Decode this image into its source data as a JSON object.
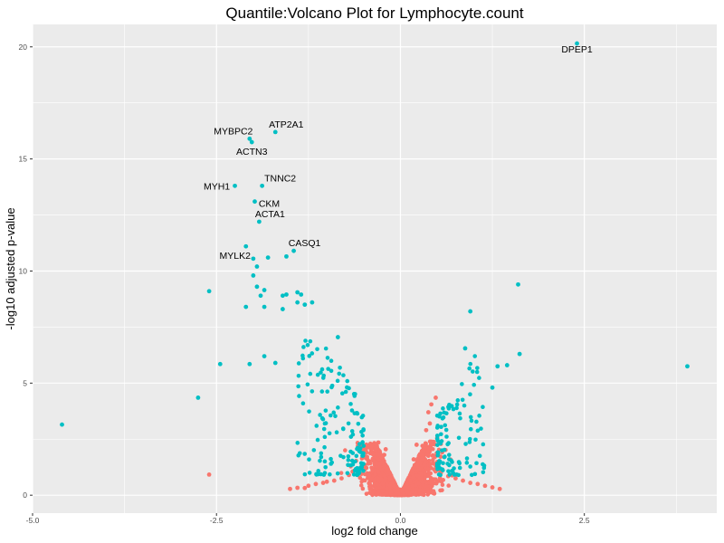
{
  "chart_data": {
    "type": "scatter",
    "title": "Quantile:Volcano Plot for Lymphocyte.count",
    "xlabel": "log2 fold change",
    "ylabel": "-log10 adjusted p-value",
    "xlim": [
      -5.0,
      4.3
    ],
    "ylim": [
      -0.8,
      21.0
    ],
    "x_ticks": [
      {
        "value": -5.0,
        "label": "-5.0"
      },
      {
        "value": -2.5,
        "label": "-2.5"
      },
      {
        "value": 0.0,
        "label": "0.0"
      },
      {
        "value": 2.5,
        "label": "2.5"
      }
    ],
    "y_ticks": [
      {
        "value": 0,
        "label": "0"
      },
      {
        "value": 5,
        "label": "5"
      },
      {
        "value": 10,
        "label": "10"
      },
      {
        "value": 15,
        "label": "15"
      },
      {
        "value": 20,
        "label": "20"
      }
    ],
    "grid": true,
    "legend": "none",
    "colors": {
      "not_significant": "#F8766D",
      "significant": "#00BFC4",
      "panel_background": "#EBEBEB",
      "grid": "#FFFFFF"
    },
    "series": [
      {
        "color": "#00BFC4",
        "points": [
          [
            2.4,
            20.15
          ],
          [
            -1.7,
            16.2
          ],
          [
            -2.05,
            15.9
          ],
          [
            -2.02,
            15.75
          ],
          [
            -1.88,
            13.8
          ],
          [
            -2.25,
            13.8
          ],
          [
            -1.98,
            13.1
          ],
          [
            -1.92,
            12.2
          ],
          [
            -1.45,
            10.9
          ],
          [
            -2.1,
            11.1
          ],
          [
            -1.55,
            10.65
          ],
          [
            -2.0,
            10.55
          ],
          [
            -1.8,
            10.6
          ],
          [
            -1.95,
            10.2
          ],
          [
            -2.6,
            9.1
          ],
          [
            1.6,
            9.4
          ],
          [
            0.95,
            8.2
          ],
          [
            -4.6,
            3.15
          ],
          [
            3.9,
            5.75
          ],
          [
            -2.75,
            4.35
          ],
          [
            -2.45,
            5.85
          ],
          [
            1.62,
            6.3
          ],
          [
            -2.0,
            9.8
          ],
          [
            -1.95,
            9.3
          ],
          [
            -1.85,
            9.15
          ],
          [
            -1.6,
            8.9
          ],
          [
            -1.55,
            8.95
          ],
          [
            -1.4,
            9.05
          ],
          [
            -1.35,
            8.95
          ],
          [
            -1.4,
            8.6
          ],
          [
            -1.3,
            8.5
          ],
          [
            -1.2,
            8.6
          ],
          [
            -1.9,
            8.9
          ],
          [
            -1.85,
            8.4
          ],
          [
            -2.1,
            8.4
          ],
          [
            -1.6,
            8.3
          ],
          [
            -0.85,
            7.05
          ],
          [
            0.88,
            6.55
          ],
          [
            -1.85,
            6.2
          ],
          [
            -2.05,
            5.85
          ],
          [
            -1.7,
            5.9
          ],
          [
            1.32,
            5.75
          ],
          [
            1.45,
            5.8
          ],
          [
            1.25,
            4.8
          ]
        ]
      },
      {
        "color": "#F8766D",
        "points": [
          [
            -2.6,
            0.92
          ],
          [
            -0.4,
            2.2
          ],
          [
            -0.3,
            2.35
          ],
          [
            -0.2,
            2.05
          ],
          [
            -0.5,
            2.0
          ],
          [
            0.3,
            2.2
          ],
          [
            0.35,
            2.9
          ],
          [
            0.4,
            3.2
          ],
          [
            0.42,
            4.05
          ],
          [
            0.48,
            4.35
          ],
          [
            0.38,
            3.7
          ],
          [
            0.5,
            2.55
          ],
          [
            0.22,
            2.25
          ],
          [
            -0.55,
            1.2
          ],
          [
            -0.65,
            1.05
          ],
          [
            -0.7,
            0.9
          ],
          [
            -0.8,
            0.75
          ],
          [
            -0.9,
            0.65
          ],
          [
            -1.0,
            0.6
          ],
          [
            -1.05,
            0.55
          ],
          [
            -1.15,
            0.5
          ],
          [
            -1.25,
            0.42
          ],
          [
            -1.4,
            0.33
          ],
          [
            -1.5,
            0.28
          ],
          [
            -1.3,
            0.32
          ],
          [
            0.55,
            1.0
          ],
          [
            0.65,
            0.85
          ],
          [
            0.75,
            0.75
          ],
          [
            0.85,
            0.65
          ],
          [
            0.95,
            0.55
          ],
          [
            1.05,
            0.5
          ],
          [
            1.15,
            0.42
          ],
          [
            1.25,
            0.35
          ],
          [
            1.35,
            0.28
          ],
          [
            -0.22,
            1.8
          ],
          [
            0.18,
            1.6
          ]
        ]
      }
    ],
    "annotations": [
      {
        "label": "DPEP1",
        "x": 2.4,
        "y": 20.15
      },
      {
        "label": "ATP2A1",
        "x": -1.7,
        "y": 16.2
      },
      {
        "label": "MYBPC2",
        "x": -2.05,
        "y": 15.9
      },
      {
        "label": "ACTN3",
        "x": -2.02,
        "y": 15.75
      },
      {
        "label": "TNNC2",
        "x": -1.88,
        "y": 13.8
      },
      {
        "label": "MYH1",
        "x": -2.25,
        "y": 13.8
      },
      {
        "label": "CKM",
        "x": -1.98,
        "y": 13.1
      },
      {
        "label": "ACTA1",
        "x": -1.92,
        "y": 12.2
      },
      {
        "label": "CASQ1",
        "x": -1.45,
        "y": 10.9
      },
      {
        "label": "MYLK2",
        "x": -2.1,
        "y": 11.1
      }
    ]
  }
}
